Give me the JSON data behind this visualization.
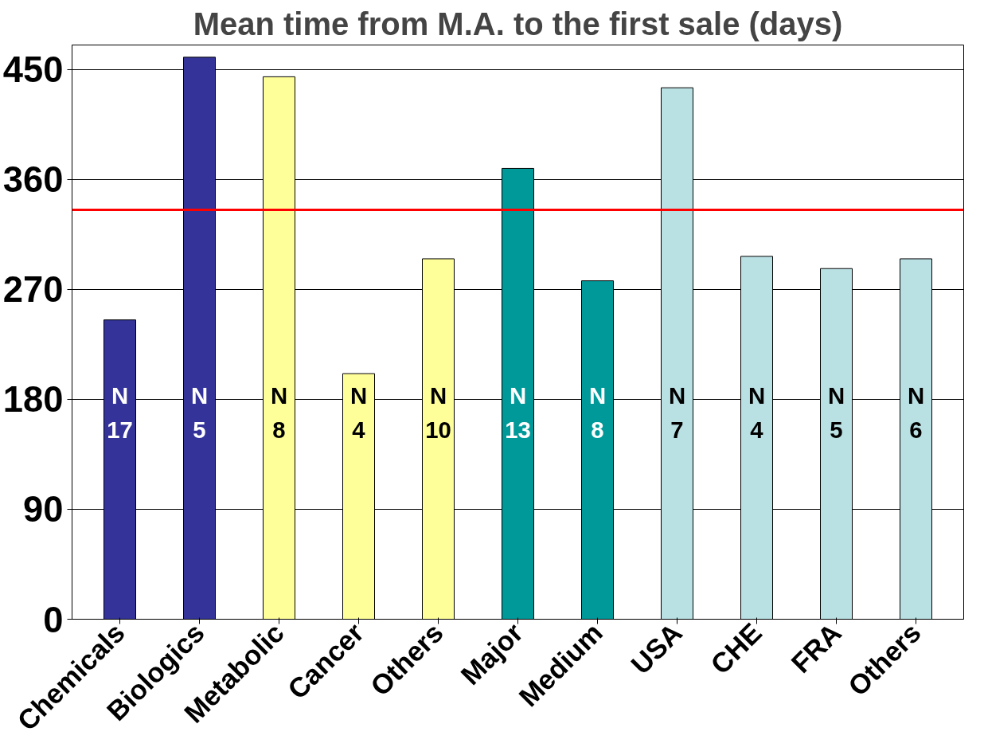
{
  "chart_data": {
    "type": "bar",
    "title": "Mean time from M.A. to the first sale (days)",
    "categories": [
      "Chemicals",
      "Biologics",
      "Metabolic",
      "Cancer",
      "Others",
      "Major",
      "Medium",
      "USA",
      "CHE",
      "FRA",
      "Others"
    ],
    "values": [
      245,
      460,
      444,
      201,
      295,
      369,
      277,
      435,
      297,
      287,
      295
    ],
    "colors": [
      "#333399",
      "#333399",
      "#ffff99",
      "#ffff99",
      "#ffff99",
      "#009999",
      "#009999",
      "#b9e0e3",
      "#b9e0e3",
      "#b9e0e3",
      "#b9e0e3"
    ],
    "value_labels": [
      "N\n17",
      "N\n5",
      "N\n8",
      "N\n4",
      "N\n10",
      "N\n13",
      "N\n8",
      "N\n7",
      "N\n4",
      "N\n5",
      "N\n6"
    ],
    "ylim": [
      0,
      470
    ],
    "yticks": [
      0,
      90,
      180,
      270,
      360,
      450
    ],
    "grid": "y",
    "ref_lines": [
      {
        "axis": "y",
        "value": 335,
        "color": "#ff0000"
      }
    ]
  }
}
